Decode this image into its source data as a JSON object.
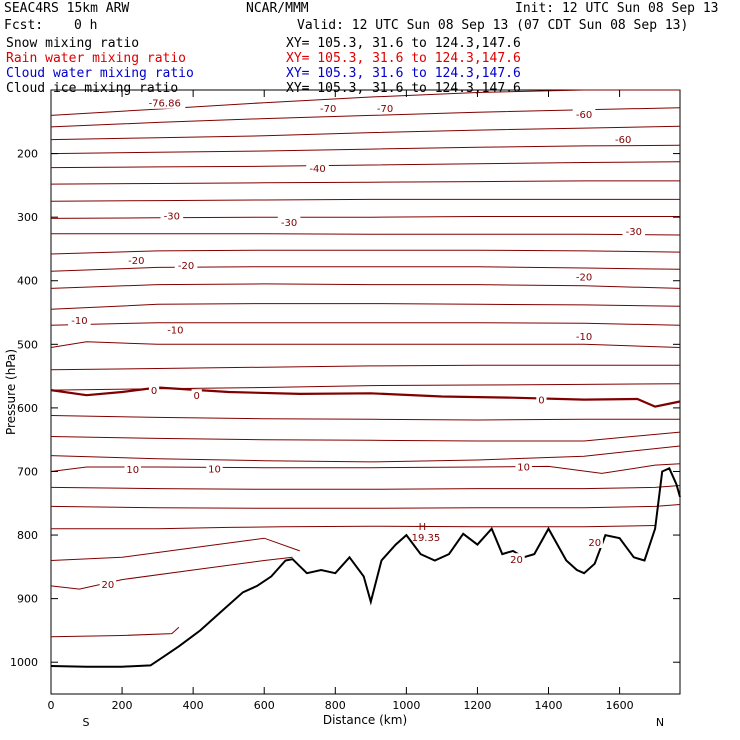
{
  "header": {
    "model": "SEAC4RS 15km ARW",
    "center": "NCAR/MMM",
    "init": "Init: 12 UTC Sun 08 Sep 13",
    "fcst_label": "Fcst:",
    "fcst_value": "0 h",
    "valid": "Valid: 12 UTC Sun 08 Sep 13 (07 CDT Sun 08 Sep 13)"
  },
  "legend": [
    {
      "name": "Snow mixing ratio",
      "xy": "XY= 105.3, 31.6 to 124.3,147.6",
      "color": "#000000"
    },
    {
      "name": "Rain water mixing ratio",
      "xy": "XY= 105.3, 31.6 to 124.3,147.6",
      "color": "#dd0000"
    },
    {
      "name": "Cloud water mixing ratio",
      "xy": "XY= 105.3, 31.6 to 124.3,147.6",
      "color": "#0000cc"
    },
    {
      "name": "Cloud ice mixing ratio",
      "xy": "XY= 105.3, 31.6 to 124.3,147.6",
      "color": "#000000"
    }
  ],
  "chart_data": {
    "type": "line",
    "xlabel": "Distance (km)",
    "ylabel": "Pressure (hPa)",
    "xlim": [
      0,
      1770
    ],
    "ylim": [
      1050,
      100
    ],
    "x_ticks": [
      0,
      200,
      400,
      600,
      800,
      1000,
      1200,
      1400,
      1600
    ],
    "y_ticks": [
      200,
      300,
      400,
      500,
      600,
      700,
      800,
      900,
      1000
    ],
    "y_tick_labels": [
      "200",
      "300",
      "400",
      "500",
      "600",
      "700",
      "800",
      "900",
      "1000"
    ],
    "x_tick_labels": [
      "0",
      "200",
      "400",
      "600",
      "800",
      "1000",
      "1200",
      "1400",
      "1600"
    ],
    "endpoint_labels": {
      "left": "S",
      "right": "N"
    },
    "contour_color": "#800000",
    "terrain_color": "#000000",
    "contours": [
      {
        "x": [
          0,
          300,
          600,
          900,
          1200,
          1500,
          1770
        ],
        "y": [
          140,
          130,
          120,
          111,
          104,
          100,
          100
        ]
      },
      {
        "x": [
          0,
          300,
          600,
          900,
          1200,
          1500,
          1770
        ],
        "y": [
          158,
          151,
          145,
          140,
          135,
          131,
          128
        ]
      },
      {
        "x": [
          0,
          300,
          600,
          900,
          1200,
          1500,
          1770
        ],
        "y": [
          178,
          175,
          172,
          167,
          163,
          160,
          157
        ]
      },
      {
        "x": [
          0,
          300,
          600,
          900,
          1200,
          1500,
          1770
        ],
        "y": [
          200,
          198,
          196,
          193,
          190,
          188,
          187
        ]
      },
      {
        "x": [
          0,
          300,
          600,
          900,
          1200,
          1500,
          1770
        ],
        "y": [
          222,
          221,
          220,
          218,
          216,
          214,
          213
        ]
      },
      {
        "x": [
          0,
          300,
          600,
          900,
          1200,
          1500,
          1770
        ],
        "y": [
          248,
          247,
          246,
          245,
          244,
          243,
          243
        ]
      },
      {
        "x": [
          0,
          300,
          600,
          900,
          1200,
          1500,
          1770
        ],
        "y": [
          275,
          274,
          273,
          272,
          272,
          272,
          272
        ]
      },
      {
        "x": [
          0,
          300,
          600,
          900,
          1200,
          1500,
          1770
        ],
        "y": [
          302,
          301,
          300,
          300,
          299,
          299,
          299
        ]
      },
      {
        "x": [
          0,
          300,
          600,
          900,
          1200,
          1500,
          1770
        ],
        "y": [
          326,
          326,
          326,
          327,
          327,
          327,
          328
        ]
      },
      {
        "x": [
          0,
          300,
          600,
          900,
          1200,
          1500,
          1770
        ],
        "y": [
          358,
          353,
          352,
          352,
          352,
          353,
          355
        ]
      },
      {
        "x": [
          0,
          300,
          600,
          900,
          1200,
          1500,
          1770
        ],
        "y": [
          385,
          379,
          378,
          378,
          378,
          380,
          382
        ]
      },
      {
        "x": [
          0,
          300,
          600,
          900,
          1200,
          1500,
          1770
        ],
        "y": [
          412,
          406,
          405,
          406,
          406,
          408,
          412
        ]
      },
      {
        "x": [
          0,
          300,
          600,
          900,
          1200,
          1500,
          1770
        ],
        "y": [
          445,
          437,
          436,
          436,
          437,
          438,
          440
        ]
      },
      {
        "x": [
          0,
          300,
          600,
          900,
          1200,
          1500,
          1770
        ],
        "y": [
          470,
          466,
          466,
          466,
          466,
          467,
          470
        ]
      },
      {
        "x": [
          0,
          100,
          300,
          600,
          900,
          1200,
          1500,
          1770
        ],
        "y": [
          505,
          496,
          500,
          500,
          500,
          500,
          500,
          505
        ]
      },
      {
        "x": [
          0,
          300,
          600,
          900,
          1200,
          1500,
          1770
        ],
        "y": [
          540,
          538,
          536,
          534,
          533,
          533,
          533
        ]
      },
      {
        "x": [
          0,
          300,
          600,
          900,
          1200,
          1500,
          1770
        ],
        "y": [
          572,
          570,
          568,
          565,
          564,
          563,
          562
        ]
      },
      {
        "x": [
          0,
          100,
          200,
          300,
          500,
          700,
          900,
          1100,
          1300,
          1500,
          1650,
          1700,
          1770
        ],
        "y": [
          572,
          580,
          575,
          568,
          575,
          578,
          577,
          582,
          584,
          587,
          586,
          598,
          590
        ],
        "bold": true
      },
      {
        "x": [
          0,
          300,
          600,
          900,
          1200,
          1500,
          1770
        ],
        "y": [
          612,
          615,
          617,
          618,
          619,
          618,
          618
        ]
      },
      {
        "x": [
          0,
          300,
          600,
          900,
          1200,
          1500,
          1770
        ],
        "y": [
          645,
          648,
          650,
          651,
          652,
          652,
          638
        ]
      },
      {
        "x": [
          0,
          300,
          600,
          900,
          1200,
          1500,
          1770
        ],
        "y": [
          675,
          680,
          683,
          685,
          682,
          676,
          660
        ]
      },
      {
        "x": [
          0,
          100,
          300,
          600,
          900,
          1200,
          1400,
          1550,
          1700,
          1770
        ],
        "y": [
          700,
          693,
          693,
          694,
          694,
          693,
          692,
          703,
          690,
          688
        ]
      },
      {
        "x": [
          0,
          300,
          600,
          900,
          1200,
          1500,
          1700,
          1770
        ],
        "y": [
          725,
          727,
          728,
          728,
          727,
          727,
          725,
          722
        ]
      },
      {
        "x": [
          0,
          300,
          600,
          900,
          1200,
          1500,
          1700,
          1770
        ],
        "y": [
          755,
          757,
          758,
          758,
          757,
          757,
          755,
          752
        ]
      },
      {
        "x": [
          0,
          300,
          500,
          650,
          900,
          1200,
          1500,
          1700
        ],
        "y": [
          790,
          790,
          788,
          787,
          786,
          787,
          787,
          785
        ]
      },
      {
        "x": [
          0,
          200,
          400,
          600,
          700
        ],
        "y": [
          840,
          835,
          820,
          805,
          825
        ]
      },
      {
        "x": [
          0,
          80,
          200,
          400,
          600,
          680
        ],
        "y": [
          880,
          885,
          870,
          855,
          840,
          835
        ]
      },
      {
        "x": [
          0,
          200,
          340,
          360
        ],
        "y": [
          960,
          958,
          955,
          945
        ]
      }
    ],
    "terrain": {
      "x": [
        0,
        100,
        200,
        280,
        320,
        360,
        420,
        480,
        540,
        580,
        620,
        660,
        680,
        720,
        760,
        800,
        840,
        880,
        900,
        930,
        970,
        1000,
        1040,
        1080,
        1120,
        1160,
        1200,
        1240,
        1270,
        1300,
        1330,
        1360,
        1400,
        1420,
        1450,
        1480,
        1500,
        1530,
        1560,
        1600,
        1640,
        1670,
        1700,
        1720,
        1740,
        1760,
        1770
      ],
      "y": [
        1006,
        1007,
        1007,
        1005,
        990,
        975,
        950,
        920,
        890,
        880,
        865,
        840,
        838,
        860,
        855,
        860,
        835,
        865,
        905,
        840,
        815,
        800,
        830,
        840,
        830,
        798,
        815,
        790,
        830,
        825,
        835,
        830,
        790,
        810,
        840,
        855,
        860,
        845,
        800,
        805,
        835,
        840,
        790,
        700,
        695,
        720,
        740
      ]
    },
    "annotations": [
      {
        "text": "H",
        "x": 1045,
        "y": 786
      },
      {
        "text": "19.35",
        "x": 1055,
        "y": 803
      }
    ],
    "contour_labels": [
      {
        "text": "-76.86",
        "x": 320,
        "y": 120
      },
      {
        "text": "-70",
        "x": 780,
        "y": 128
      },
      {
        "text": "-70",
        "x": 940,
        "y": 128
      },
      {
        "text": "-60",
        "x": 1500,
        "y": 138
      },
      {
        "text": "-60",
        "x": 1610,
        "y": 177
      },
      {
        "text": "-40",
        "x": 750,
        "y": 223
      },
      {
        "text": "-30",
        "x": 340,
        "y": 297
      },
      {
        "text": "-30",
        "x": 670,
        "y": 308
      },
      {
        "text": "-30",
        "x": 1640,
        "y": 322
      },
      {
        "text": "-20",
        "x": 240,
        "y": 367
      },
      {
        "text": "-20",
        "x": 380,
        "y": 375
      },
      {
        "text": "-20",
        "x": 1500,
        "y": 393
      },
      {
        "text": "-10",
        "x": 80,
        "y": 462
      },
      {
        "text": "-10",
        "x": 350,
        "y": 477
      },
      {
        "text": "-10",
        "x": 1500,
        "y": 487
      },
      {
        "text": "0",
        "x": 290,
        "y": 572
      },
      {
        "text": "0",
        "x": 410,
        "y": 580
      },
      {
        "text": "0",
        "x": 1380,
        "y": 587
      },
      {
        "text": "10",
        "x": 230,
        "y": 696
      },
      {
        "text": "10",
        "x": 460,
        "y": 695
      },
      {
        "text": "10",
        "x": 1330,
        "y": 692
      },
      {
        "text": "20",
        "x": 160,
        "y": 877
      },
      {
        "text": "20",
        "x": 1310,
        "y": 838
      },
      {
        "text": "20",
        "x": 1530,
        "y": 811
      }
    ]
  }
}
